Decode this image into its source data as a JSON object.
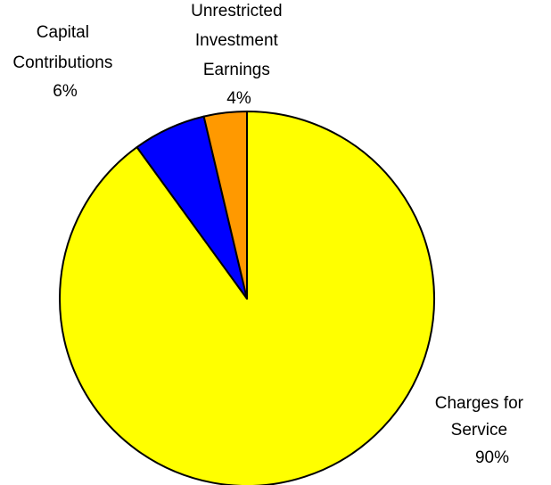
{
  "chart_data": {
    "type": "pie",
    "title": "",
    "start_angle_deg": 0,
    "direction": "counterclockwise-from-top",
    "slices": [
      {
        "label_lines": [
          "Charges for",
          "Service"
        ],
        "percent_label": "90%",
        "value": 90,
        "color": "#FFFF00"
      },
      {
        "label_lines": [
          "Capital",
          "Contributions"
        ],
        "percent_label": "6%",
        "value": 6.3,
        "color": "#0000FF"
      },
      {
        "label_lines": [
          "Unrestricted",
          "Investment",
          "Earnings"
        ],
        "percent_label": "4%",
        "value": 3.7,
        "color": "#FF9900"
      }
    ]
  }
}
